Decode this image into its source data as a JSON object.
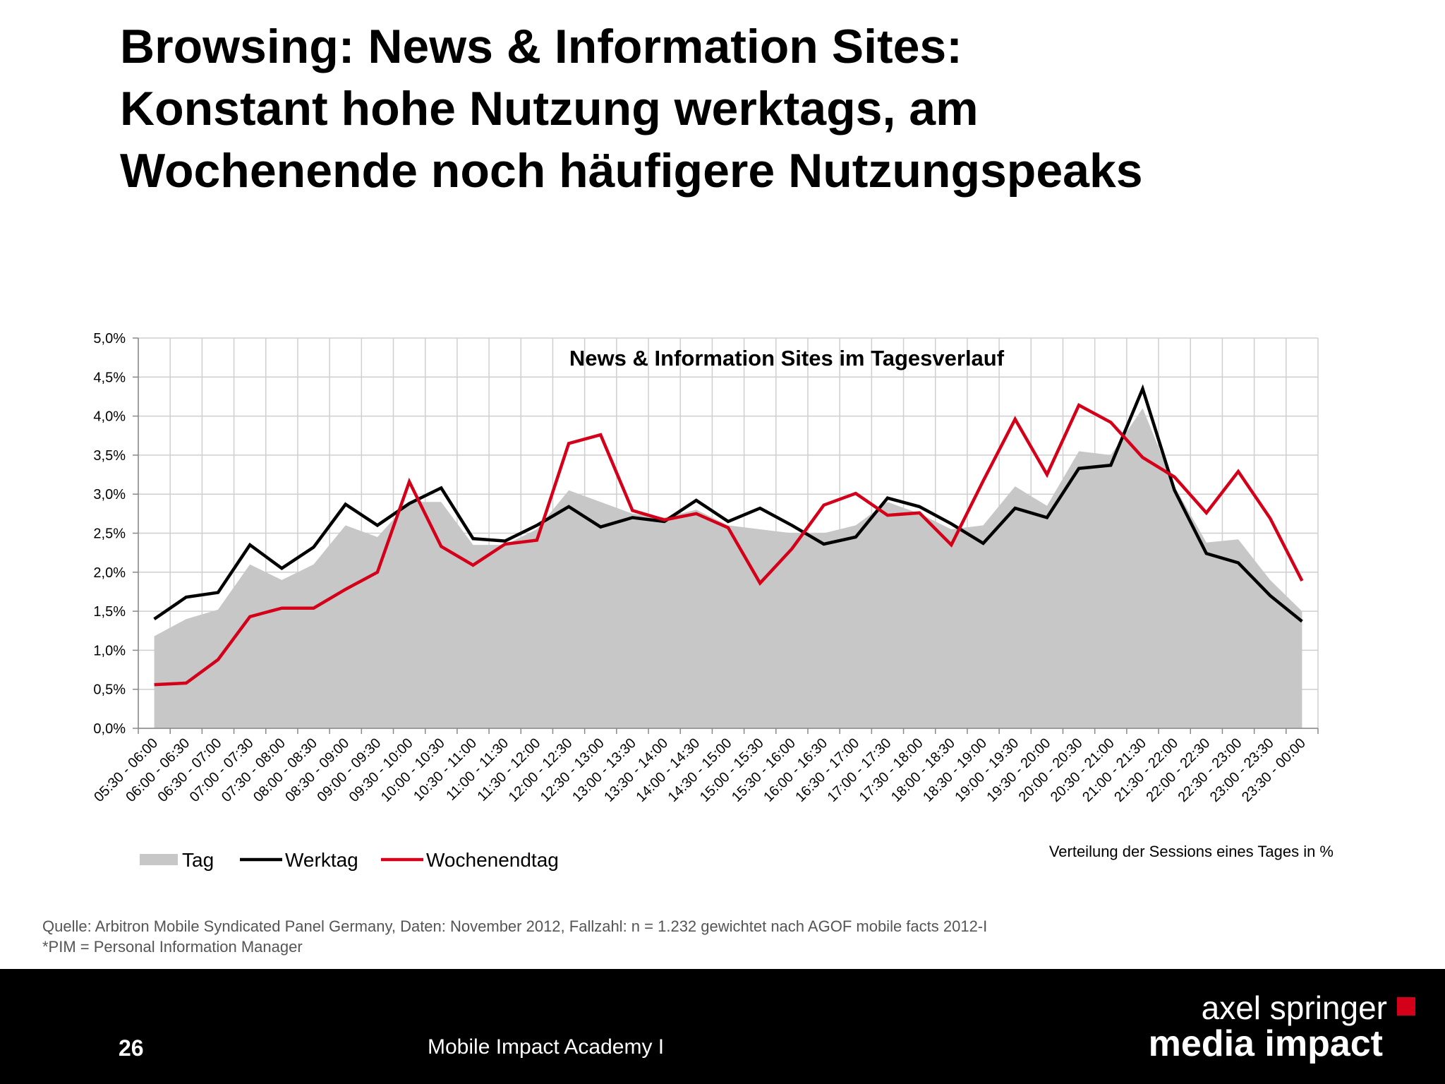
{
  "title_lines": [
    "Browsing: News & Information Sites:",
    "Konstant hohe Nutzung werktags, am",
    "Wochenende noch häufigere Nutzungspeaks"
  ],
  "chart_data": {
    "type": "line",
    "title": "News & Information Sites im Tagesverlauf",
    "note": "Verteilung der Sessions eines Tages  in %",
    "ylim": [
      0,
      5
    ],
    "y_ticks": [
      "0,0%",
      "0,5%",
      "1,0%",
      "1,5%",
      "2,0%",
      "2,5%",
      "3,0%",
      "3,5%",
      "4,0%",
      "4,5%",
      "5,0%"
    ],
    "grid": true,
    "legend_position": "bottom-left",
    "categories": [
      "05:30 - 06:00",
      "06:00 - 06:30",
      "06:30 - 07:00",
      "07:00 - 07:30",
      "07:30 - 08:00",
      "08:00 - 08:30",
      "08:30 - 09:00",
      "09:00 - 09:30",
      "09:30 - 10:00",
      "10:00 - 10:30",
      "10:30 - 11:00",
      "11:00 - 11:30",
      "11:30 - 12:00",
      "12:00 - 12:30",
      "12:30 - 13:00",
      "13:00 - 13:30",
      "13:30 - 14:00",
      "14:00 - 14:30",
      "14:30 - 15:00",
      "15:00 - 15:30",
      "15:30 - 16:00",
      "16:00 - 16:30",
      "16:30 - 17:00",
      "17:00 - 17:30",
      "17:30 - 18:00",
      "18:00 - 18:30",
      "18:30 - 19:00",
      "19:00 - 19:30",
      "19:30 - 20:00",
      "20:00 - 20:30",
      "20:30 - 21:00",
      "21:00 - 21:30",
      "21:30 - 22:00",
      "22:00 - 22:30",
      "22:30 - 23:00",
      "23:00 - 23:30",
      "23:30 - 00:00"
    ],
    "series": [
      {
        "name": "Tag",
        "style": "area",
        "color": "#c8c7c7",
        "values": [
          1.18,
          1.4,
          1.52,
          2.1,
          1.9,
          2.1,
          2.6,
          2.45,
          2.9,
          2.9,
          2.35,
          2.35,
          2.55,
          3.05,
          2.9,
          2.75,
          2.7,
          2.8,
          2.6,
          2.55,
          2.5,
          2.5,
          2.6,
          2.9,
          2.75,
          2.55,
          2.6,
          3.1,
          2.85,
          3.55,
          3.5,
          4.1,
          3.1,
          2.38,
          2.42,
          1.9,
          1.5
        ]
      },
      {
        "name": "Werktag",
        "style": "line",
        "color": "#000000",
        "values": [
          1.4,
          1.68,
          1.74,
          2.35,
          2.05,
          2.32,
          2.87,
          2.6,
          2.88,
          3.08,
          2.43,
          2.4,
          2.6,
          2.84,
          2.58,
          2.7,
          2.65,
          2.92,
          2.65,
          2.82,
          2.6,
          2.36,
          2.45,
          2.95,
          2.84,
          2.62,
          2.37,
          2.82,
          2.7,
          3.33,
          3.37,
          4.35,
          3.05,
          2.24,
          2.12,
          1.7,
          1.37
        ]
      },
      {
        "name": "Wochenendtag",
        "style": "line",
        "color": "#d4001a",
        "values": [
          0.56,
          0.58,
          0.88,
          1.43,
          1.54,
          1.54,
          1.78,
          2.0,
          3.16,
          2.33,
          2.09,
          2.36,
          2.41,
          3.65,
          3.76,
          2.79,
          2.67,
          2.75,
          2.57,
          1.86,
          2.3,
          2.86,
          3.01,
          2.73,
          2.76,
          2.35,
          3.17,
          3.96,
          3.25,
          4.14,
          3.92,
          3.47,
          3.22,
          2.76,
          3.29,
          2.69,
          1.89
        ]
      }
    ]
  },
  "source_lines": [
    "Quelle: Arbitron Mobile Syndicated Panel Germany, Daten: November 2012, Fallzahl: n = 1.232 gewichtet nach AGOF mobile facts 2012-I",
    "*PIM = Personal Information Manager"
  ],
  "footer": {
    "page_number": "26",
    "event_name": "Mobile Impact Academy I",
    "brand_line1": "axel springer",
    "brand_line2": "media impact",
    "brand_accent": "#d4001a"
  }
}
